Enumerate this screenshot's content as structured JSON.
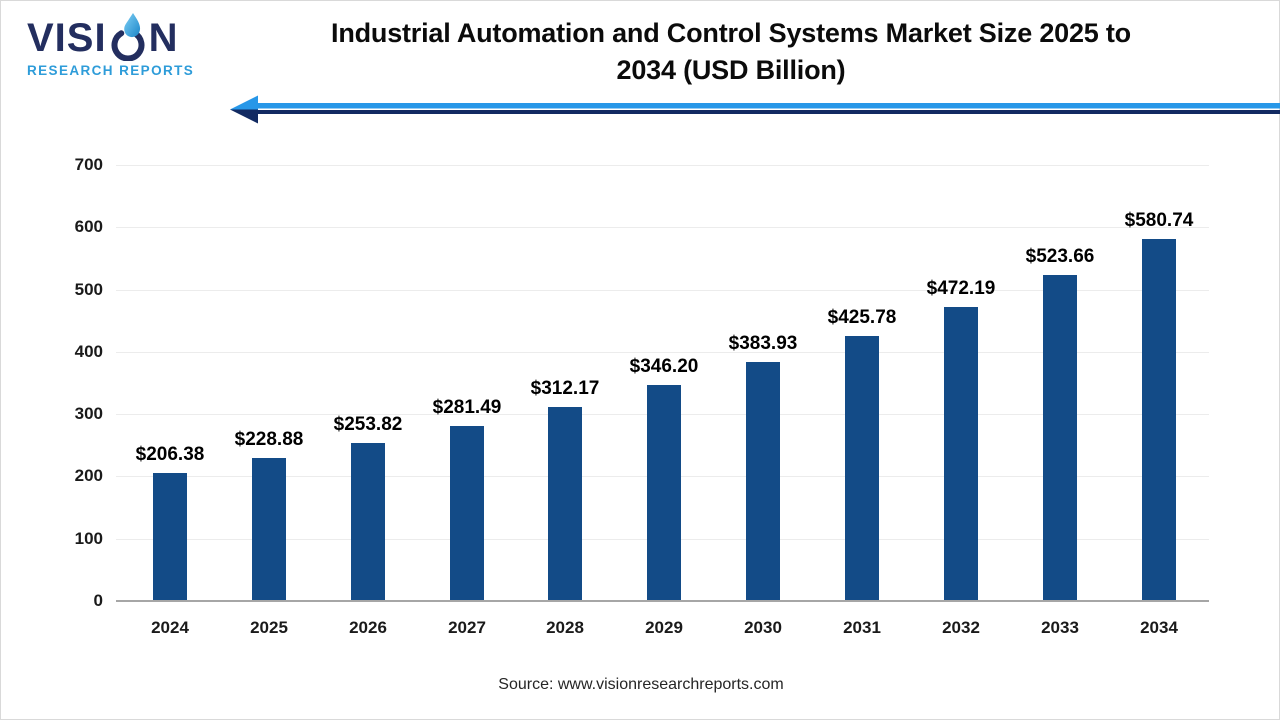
{
  "logo": {
    "brand_prefix": "VISI",
    "brand_suffix": "N",
    "tagline": "RESEARCH REPORTS",
    "navy": "#232E5F",
    "blue": "#2E9CD9"
  },
  "title": {
    "line1": "Industrial Automation and Control Systems Market Size 2025 to",
    "line2": "2034 (USD Billion)"
  },
  "decor": {
    "arrow_light": "#2797E8",
    "arrow_dark": "#122A62"
  },
  "chart_data": {
    "type": "bar",
    "title": "Industrial Automation and Control Systems Market Size 2025 to 2034 (USD Billion)",
    "categories": [
      "2024",
      "2025",
      "2026",
      "2027",
      "2028",
      "2029",
      "2030",
      "2031",
      "2032",
      "2033",
      "2034"
    ],
    "values": [
      206.38,
      228.88,
      253.82,
      281.49,
      312.17,
      346.2,
      383.93,
      425.78,
      472.19,
      523.66,
      580.74
    ],
    "data_labels": [
      "$206.38",
      "$228.88",
      "$253.82",
      "$281.49",
      "$312.17",
      "$346.20",
      "$383.93",
      "$425.78",
      "$472.19",
      "$523.66",
      "$580.74"
    ],
    "xlabel": "",
    "ylabel": "",
    "ylim": [
      0,
      700
    ],
    "yticks": [
      0,
      100,
      200,
      300,
      400,
      500,
      600,
      700
    ],
    "grid": true,
    "legend": null,
    "bar_color": "#134B87",
    "grid_color": "#ECECEC",
    "axis_color": "#A6A6A6"
  },
  "source": {
    "text": "Source: www.visionresearchreports.com"
  }
}
